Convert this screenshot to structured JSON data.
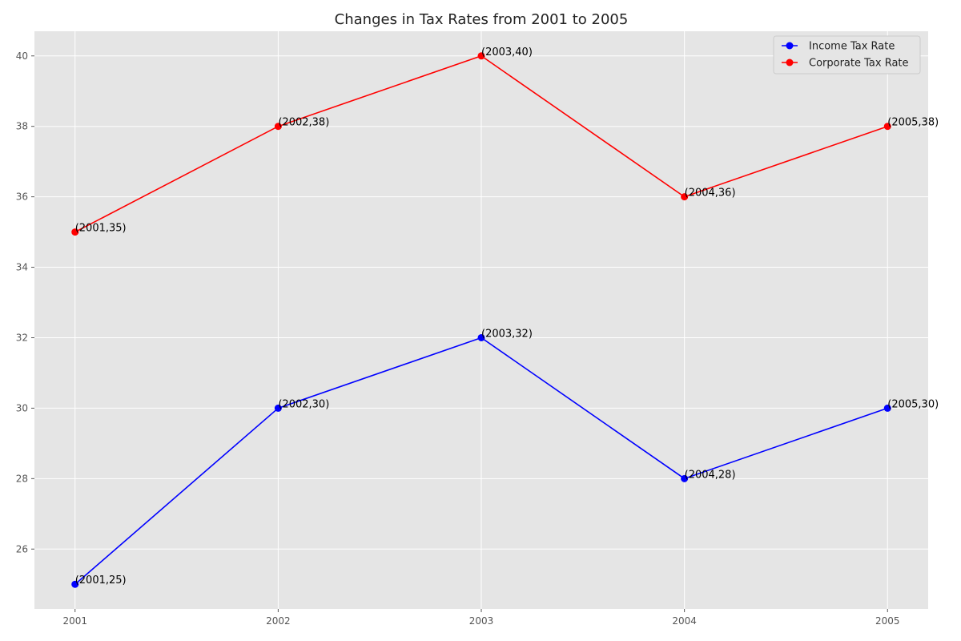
{
  "chart_data": {
    "type": "line",
    "title": "Changes in Tax Rates from 2001 to 2005",
    "xlabel": "",
    "ylabel": "",
    "x": [
      2001,
      2002,
      2003,
      2004,
      2005
    ],
    "xlim": [
      2000.8,
      2005.2
    ],
    "ylim": [
      24.3,
      40.7
    ],
    "yticks": [
      26,
      28,
      30,
      32,
      34,
      36,
      38,
      40
    ],
    "grid": true,
    "legend_position": "top-right",
    "series": [
      {
        "name": "Income Tax Rate",
        "color": "#0000ff",
        "marker": "circle",
        "values": [
          25,
          30,
          32,
          28,
          30
        ],
        "labels": [
          "(2001,25)",
          "(2002,30)",
          "(2003,32)",
          "(2004,28)",
          "(2005,30)"
        ]
      },
      {
        "name": "Corporate Tax Rate",
        "color": "#ff0000",
        "marker": "circle",
        "values": [
          35,
          38,
          40,
          36,
          38
        ],
        "labels": [
          "(2001,35)",
          "(2002,38)",
          "(2003,40)",
          "(2004,36)",
          "(2005,38)"
        ]
      }
    ],
    "colors": {
      "plot_background": "#e5e5e5",
      "grid": "#ffffff",
      "tick_text": "#555555"
    }
  }
}
